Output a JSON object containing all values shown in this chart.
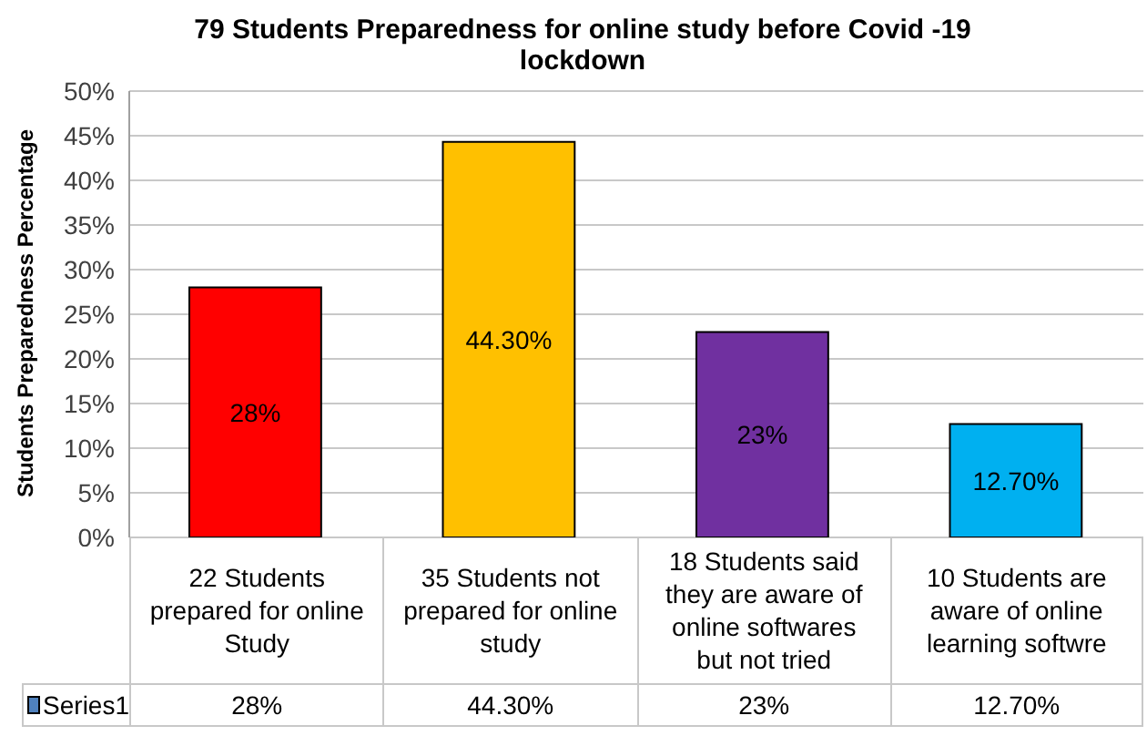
{
  "chart_data": {
    "type": "bar",
    "title": "79 Students Preparedness for online study before Covid -19 lockdown",
    "ylabel": "Students Preparedness Percentage",
    "categories": [
      "22 Students prepared for online Study",
      "35 Students not prepared for online study",
      "18 Students said they are aware of online softwares but not tried",
      "10 Students are aware of online learning softwre"
    ],
    "series": [
      {
        "name": "Series1",
        "color": "#4f81bd",
        "colors": [
          "#ff0000",
          "#ffc000",
          "#7030a0",
          "#00b0f0"
        ],
        "values": [
          28,
          44.3,
          23,
          12.7
        ],
        "value_labels": [
          "28%",
          "44.30%",
          "23%",
          "12.70%"
        ]
      }
    ],
    "ylim": [
      0,
      50
    ],
    "yticks": [
      {
        "value": 0,
        "label": "0%"
      },
      {
        "value": 5,
        "label": "5%"
      },
      {
        "value": 10,
        "label": "10%"
      },
      {
        "value": 15,
        "label": "15%"
      },
      {
        "value": 20,
        "label": "20%"
      },
      {
        "value": 25,
        "label": "25%"
      },
      {
        "value": 30,
        "label": "30%"
      },
      {
        "value": 35,
        "label": "35%"
      },
      {
        "value": 40,
        "label": "40%"
      },
      {
        "value": 45,
        "label": "45%"
      },
      {
        "value": 50,
        "label": "50%"
      }
    ],
    "grid": "y",
    "legend": "bottom"
  }
}
